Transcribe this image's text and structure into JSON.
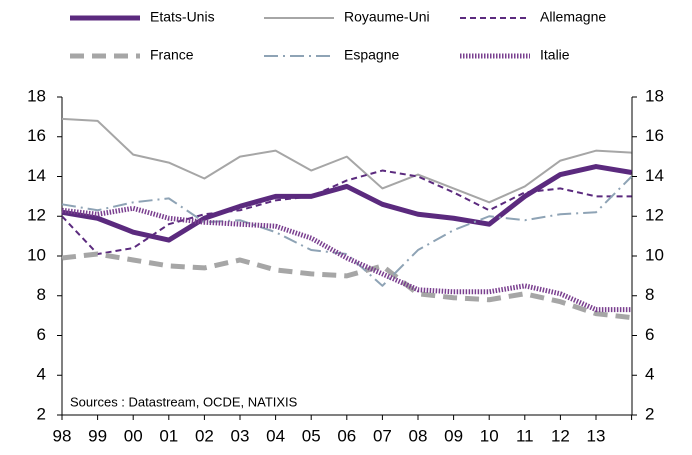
{
  "chart_data": {
    "type": "line",
    "annotation": "Sources : Datastream, OCDE, NATIXIS",
    "categories": [
      "98",
      "99",
      "00",
      "01",
      "02",
      "03",
      "04",
      "05",
      "06",
      "07",
      "08",
      "09",
      "10",
      "11",
      "12",
      "13",
      null
    ],
    "ylim": [
      2,
      18
    ],
    "yticks": [
      2,
      4,
      6,
      8,
      10,
      12,
      14,
      16,
      18
    ],
    "y2lim": [
      2,
      18
    ],
    "y2ticks": [
      2,
      4,
      6,
      8,
      10,
      12,
      14,
      16,
      18
    ],
    "series": [
      {
        "name": "Etats-Unis",
        "color": "#5b2a7e",
        "width": 5,
        "dash": "none",
        "values": [
          12.2,
          11.9,
          11.2,
          10.8,
          11.9,
          12.5,
          13.0,
          13.0,
          13.5,
          12.6,
          12.1,
          11.9,
          11.6,
          13.0,
          14.1,
          14.5,
          14.2
        ]
      },
      {
        "name": "Royaume-Uni",
        "color": "#a6a6a6",
        "width": 2,
        "dash": "none",
        "values": [
          16.9,
          16.8,
          15.1,
          14.7,
          13.9,
          15.0,
          15.3,
          14.3,
          15.0,
          13.4,
          14.1,
          13.4,
          12.7,
          13.5,
          14.8,
          15.3,
          15.2
        ]
      },
      {
        "name": "Allemagne",
        "color": "#5b2a7e",
        "width": 2,
        "dash": "6,4",
        "values": [
          12.0,
          10.1,
          10.4,
          11.6,
          12.1,
          12.3,
          12.8,
          13.0,
          13.8,
          14.3,
          14.0,
          13.2,
          12.3,
          13.2,
          13.4,
          13.0,
          13.0
        ]
      },
      {
        "name": "France",
        "color": "#a6a6a6",
        "width": 5,
        "dash": "14,8",
        "values": [
          9.9,
          10.1,
          9.8,
          9.5,
          9.4,
          9.8,
          9.3,
          9.1,
          9.0,
          9.5,
          8.1,
          7.9,
          7.8,
          8.1,
          7.7,
          7.1,
          6.9
        ]
      },
      {
        "name": "Espagne",
        "color": "#8ea3b5",
        "width": 2,
        "dash": "14,5,2,5",
        "values": [
          12.6,
          12.3,
          12.7,
          12.9,
          11.7,
          11.8,
          11.2,
          10.3,
          10.1,
          8.5,
          10.3,
          11.3,
          12.0,
          11.8,
          12.1,
          12.2,
          14.0
        ]
      },
      {
        "name": "Italie",
        "color": "#7a3f8f",
        "width": 5,
        "dash": "1.5,1.5",
        "values": [
          12.3,
          12.1,
          12.4,
          11.9,
          11.7,
          11.6,
          11.5,
          10.9,
          9.9,
          9.1,
          8.3,
          8.2,
          8.2,
          8.5,
          8.1,
          7.3,
          7.3
        ]
      }
    ]
  }
}
